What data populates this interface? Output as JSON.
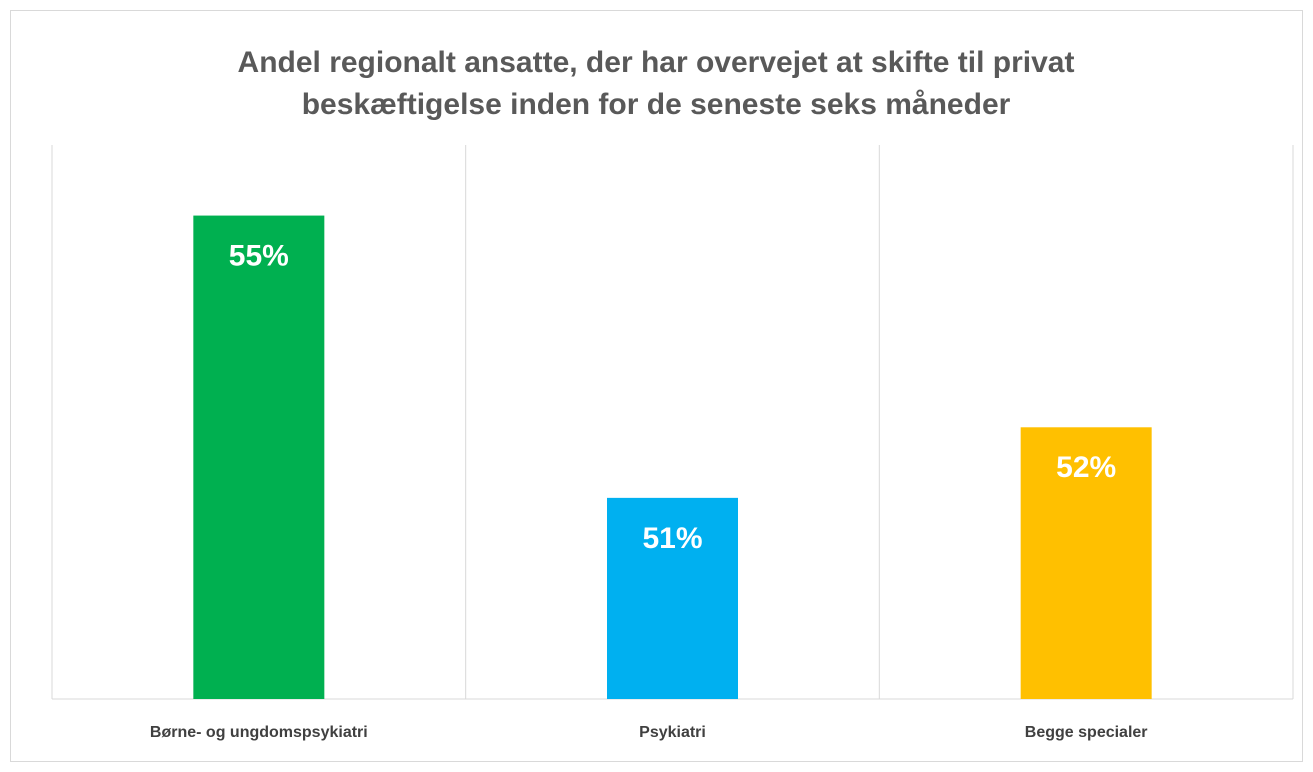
{
  "chart_data": {
    "type": "bar",
    "title": [
      "Andel regionalt ansatte, der har overvejet at skifte til privat",
      "beskæftigelse inden for de seneste seks måneder"
    ],
    "categories": [
      "Børne- og ungdomspsykiatri",
      "Psykiatri",
      "Begge specialer"
    ],
    "values": [
      55,
      51,
      52
    ],
    "value_labels": [
      "55%",
      "51%",
      "52%"
    ],
    "colors": [
      "#00b050",
      "#00b0f0",
      "#ffc000"
    ],
    "ylim": [
      48.15,
      56
    ]
  }
}
